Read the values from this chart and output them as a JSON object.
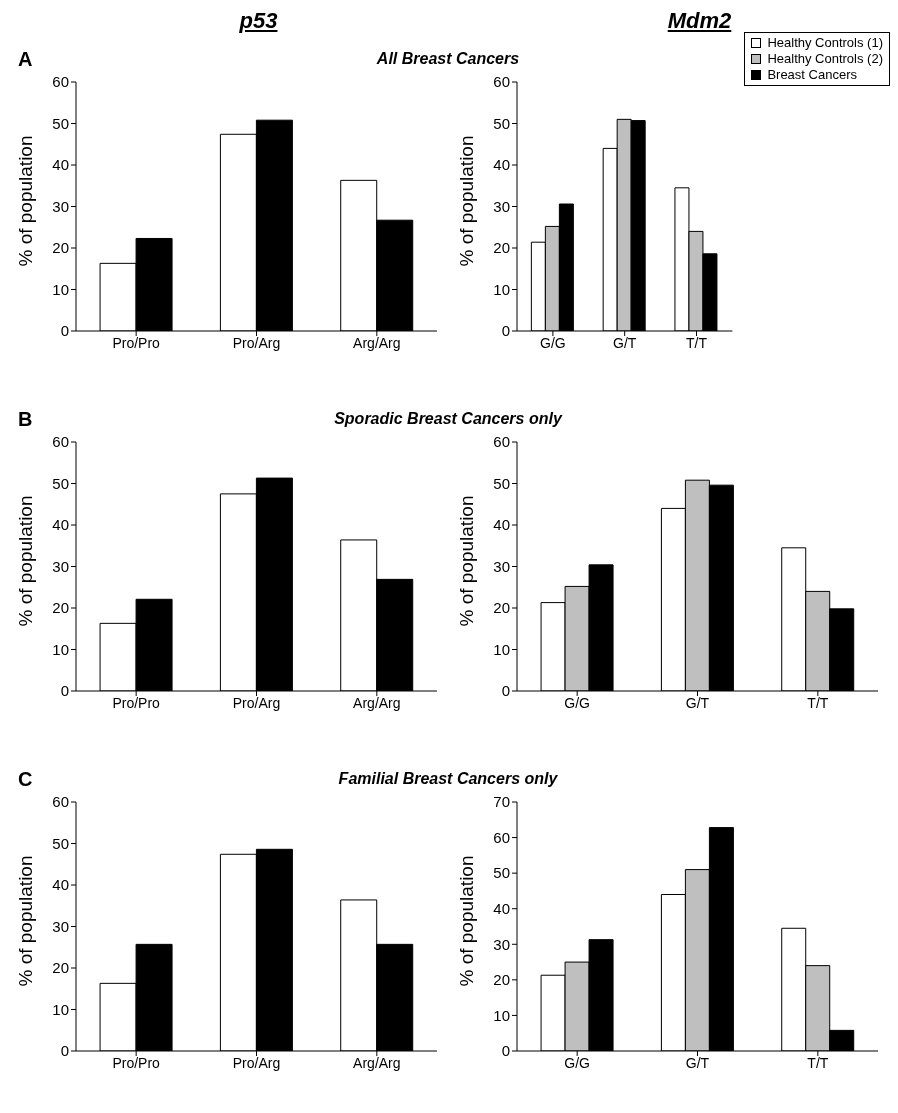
{
  "chart_data": [
    {
      "type": "bar",
      "title": "p53",
      "annotations": [
        "A",
        "All Breast Cancers"
      ],
      "ylabel": "% of population",
      "categories": [
        "Pro/Pro",
        "Pro/Arg",
        "Arg/Arg"
      ],
      "ylim": [
        0,
        60
      ],
      "yticks": [
        0,
        10,
        20,
        30,
        40,
        50,
        60
      ],
      "series": [
        {
          "color": "#ffffff",
          "values": [
            16.3,
            47.4,
            36.3
          ]
        },
        {
          "color": "#000000",
          "values": [
            22.3,
            50.8,
            26.7
          ]
        }
      ]
    },
    {
      "type": "bar",
      "title": "Mdm2",
      "ylabel": "% of population",
      "categories": [
        "G/G",
        "G/T",
        "T/T"
      ],
      "ylim": [
        0,
        60
      ],
      "yticks": [
        0,
        10,
        20,
        30,
        40,
        50,
        60
      ],
      "legend": "top right",
      "series": [
        {
          "name": "Healthy Controls (1)",
          "color": "#ffffff",
          "values": [
            21.4,
            44,
            34.5
          ]
        },
        {
          "name": "Healthy Controls (2)",
          "color": "#bfbfbf",
          "values": [
            25.2,
            51,
            24
          ]
        },
        {
          "name": "Breast Cancers",
          "color": "#000000",
          "values": [
            30.6,
            50.7,
            18.6
          ]
        }
      ]
    },
    {
      "type": "bar",
      "annotations": [
        "B",
        "Sporadic Breast Cancers only"
      ],
      "ylabel": "% of population",
      "categories": [
        "Pro/Pro",
        "Pro/Arg",
        "Arg/Arg"
      ],
      "ylim": [
        0,
        60
      ],
      "yticks": [
        0,
        10,
        20,
        30,
        40,
        50,
        60
      ],
      "series": [
        {
          "color": "#ffffff",
          "values": [
            16.3,
            47.5,
            36.4
          ]
        },
        {
          "color": "#000000",
          "values": [
            22.1,
            51.3,
            26.9
          ]
        }
      ]
    },
    {
      "type": "bar",
      "ylabel": "% of population",
      "categories": [
        "G/G",
        "G/T",
        "T/T"
      ],
      "ylim": [
        0,
        60
      ],
      "yticks": [
        0,
        10,
        20,
        30,
        40,
        50,
        60
      ],
      "series": [
        {
          "color": "#ffffff",
          "values": [
            21.3,
            44,
            34.5
          ]
        },
        {
          "color": "#bfbfbf",
          "values": [
            25.2,
            50.8,
            24
          ]
        },
        {
          "color": "#000000",
          "values": [
            30.4,
            49.6,
            19.8
          ]
        }
      ]
    },
    {
      "type": "bar",
      "annotations": [
        "C",
        "Familial Breast Cancers only"
      ],
      "ylabel": "% of population",
      "categories": [
        "Pro/Pro",
        "Pro/Arg",
        "Arg/Arg"
      ],
      "ylim": [
        0,
        60
      ],
      "yticks": [
        0,
        10,
        20,
        30,
        40,
        50,
        60
      ],
      "series": [
        {
          "color": "#ffffff",
          "values": [
            16.3,
            47.4,
            36.4
          ]
        },
        {
          "color": "#000000",
          "values": [
            25.7,
            48.6,
            25.7
          ]
        }
      ]
    },
    {
      "type": "bar",
      "ylabel": "% of population",
      "categories": [
        "G/G",
        "G/T",
        "T/T"
      ],
      "ylim": [
        0,
        70
      ],
      "yticks": [
        0,
        10,
        20,
        30,
        40,
        50,
        60,
        70
      ],
      "series": [
        {
          "color": "#ffffff",
          "values": [
            21.3,
            44,
            34.5
          ]
        },
        {
          "color": "#bfbfbf",
          "values": [
            25,
            51,
            24
          ]
        },
        {
          "color": "#000000",
          "values": [
            31.3,
            62.8,
            5.8
          ]
        }
      ]
    }
  ]
}
